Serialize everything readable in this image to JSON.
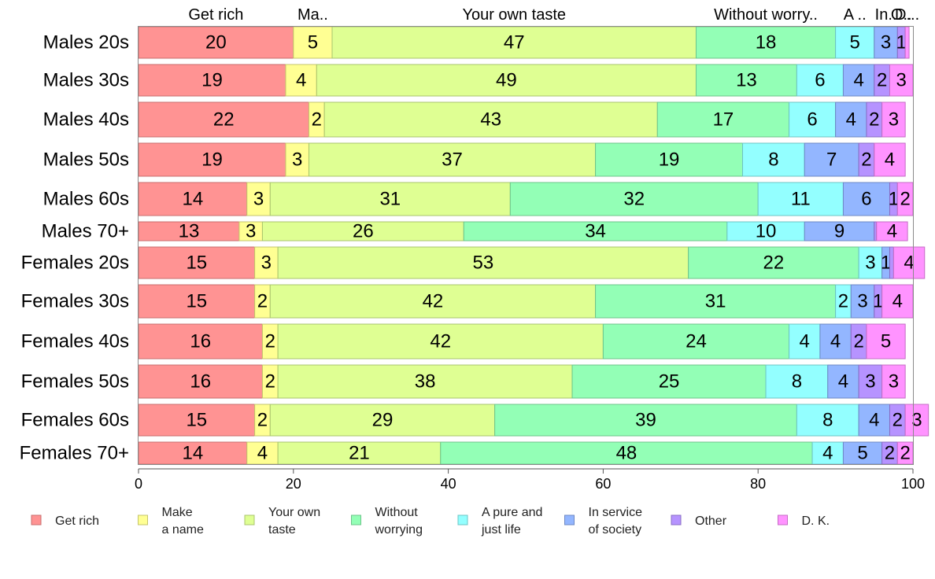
{
  "chart_data": {
    "type": "bar",
    "orientation": "horizontal",
    "stacked": true,
    "title": "",
    "xlabel": "",
    "ylabel": "",
    "xlim": [
      0,
      100
    ],
    "xticks": [
      "0",
      "20",
      "40",
      "60",
      "80",
      "100"
    ],
    "categories": [
      "Males 20s",
      "Males 30s",
      "Males 40s",
      "Males 50s",
      "Males 60s",
      "Males 70+",
      "Females 20s",
      "Females 30s",
      "Females 40s",
      "Females 50s",
      "Females 60s",
      "Females 70+"
    ],
    "relative_bar_widths": [
      1.0,
      1.0,
      1.1,
      1.05,
      1.05,
      0.6,
      1.0,
      1.05,
      1.1,
      1.05,
      1.0,
      0.7
    ],
    "top_labels": [
      "Get rich",
      "Ma..",
      "Your own taste",
      "Without worry..",
      "A ..",
      "In..",
      "O..",
      "D..."
    ],
    "grid": false,
    "legend_position": "bottom",
    "series": [
      {
        "name": "Get rich",
        "legend": [
          "Get rich"
        ],
        "color": "#FF9393",
        "border": "#C96E6E",
        "values": [
          20,
          19,
          22,
          19,
          14,
          13,
          15,
          15,
          16,
          16,
          15,
          14
        ]
      },
      {
        "name": "Make a name",
        "legend": [
          "Make",
          "a name"
        ],
        "color": "#FFFF93",
        "border": "#C4C46C",
        "values": [
          5,
          4,
          2,
          3,
          3,
          3,
          3,
          2,
          2,
          2,
          2,
          4
        ]
      },
      {
        "name": "Your own taste",
        "legend": [
          "Your own",
          "taste"
        ],
        "color": "#DFFF93",
        "border": "#A9C46C",
        "values": [
          47,
          49,
          43,
          37,
          31,
          26,
          53,
          42,
          42,
          38,
          29,
          21
        ]
      },
      {
        "name": "Without worrying",
        "legend": [
          "Without",
          "worrying"
        ],
        "color": "#93FFB6",
        "border": "#6CC48A",
        "values": [
          18,
          13,
          17,
          19,
          32,
          34,
          22,
          31,
          24,
          25,
          39,
          48
        ]
      },
      {
        "name": "A pure and just life",
        "legend": [
          "A pure and",
          "just life"
        ],
        "color": "#93FFFF",
        "border": "#6CC4C4",
        "values": [
          5,
          6,
          6,
          8,
          11,
          10,
          3,
          2,
          4,
          8,
          8,
          4
        ]
      },
      {
        "name": "In service of society",
        "legend": [
          "In service",
          "of society"
        ],
        "color": "#93B6FF",
        "border": "#6C88C4",
        "values": [
          3,
          4,
          4,
          7,
          6,
          9,
          1,
          3,
          4,
          4,
          4,
          5
        ]
      },
      {
        "name": "Other",
        "legend": [
          "Other"
        ],
        "color": "#B693FF",
        "border": "#886CC4",
        "values": [
          1,
          2,
          2,
          2,
          1,
          0.3,
          0.5,
          1,
          2,
          3,
          2,
          2
        ]
      },
      {
        "name": "D. K.",
        "legend": [
          "D. K."
        ],
        "color": "#FF93FF",
        "border": "#C46CC4",
        "values": [
          0.5,
          3,
          3,
          4,
          2,
          4,
          4,
          4,
          5,
          3,
          3,
          2
        ]
      }
    ],
    "data_labels": [
      [
        "20",
        "5",
        "47",
        "18",
        "5",
        "3",
        "1",
        ""
      ],
      [
        "19",
        "4",
        "49",
        "13",
        "6",
        "4",
        "2",
        "3"
      ],
      [
        "22",
        "2",
        "43",
        "17",
        "6",
        "4",
        "2",
        "3"
      ],
      [
        "19",
        "3",
        "37",
        "19",
        "8",
        "7",
        "2",
        "4"
      ],
      [
        "14",
        "3",
        "31",
        "32",
        "11",
        "6",
        "1",
        "2"
      ],
      [
        "13",
        "3",
        "26",
        "34",
        "10",
        "9",
        "",
        "4"
      ],
      [
        "15",
        "3",
        "53",
        "22",
        "3",
        "1",
        "",
        "4"
      ],
      [
        "15",
        "2",
        "42",
        "31",
        "2",
        "3",
        "1",
        "4"
      ],
      [
        "16",
        "2",
        "42",
        "24",
        "4",
        "4",
        "2",
        "5"
      ],
      [
        "16",
        "2",
        "38",
        "25",
        "8",
        "4",
        "3",
        "3"
      ],
      [
        "15",
        "2",
        "29",
        "39",
        "8",
        "4",
        "2",
        "3"
      ],
      [
        "14",
        "4",
        "21",
        "48",
        "4",
        "5",
        "2",
        "2"
      ]
    ]
  }
}
